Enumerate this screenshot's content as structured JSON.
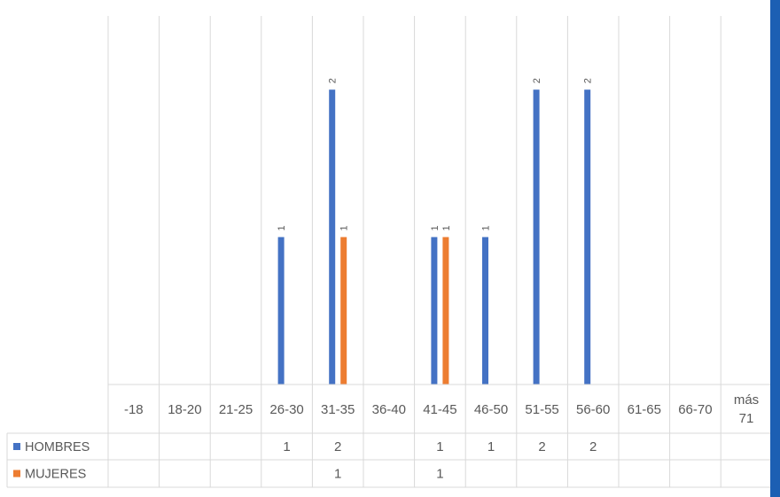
{
  "chart_data": {
    "type": "bar",
    "title": "",
    "xlabel": "",
    "ylabel": "",
    "ylim": [
      0,
      2.5
    ],
    "grid": false,
    "legend": "data-table",
    "categories": [
      "-18",
      "18-20",
      "21-25",
      "26-30",
      "31-35",
      "36-40",
      "41-45",
      "46-50",
      "51-55",
      "56-60",
      "61-65",
      "66-70",
      "más 71"
    ],
    "series": [
      {
        "name": "HOMBRES",
        "color": "#4472c4",
        "values": [
          null,
          null,
          null,
          1,
          2,
          null,
          1,
          1,
          2,
          2,
          null,
          null,
          null
        ]
      },
      {
        "name": "MUJERES",
        "color": "#ed7d31",
        "values": [
          null,
          null,
          null,
          null,
          1,
          null,
          1,
          null,
          null,
          null,
          null,
          null,
          null
        ]
      }
    ]
  },
  "colors": {
    "accent": "#1c5fb3",
    "grid": "#d9d9d9",
    "text": "#595959"
  }
}
